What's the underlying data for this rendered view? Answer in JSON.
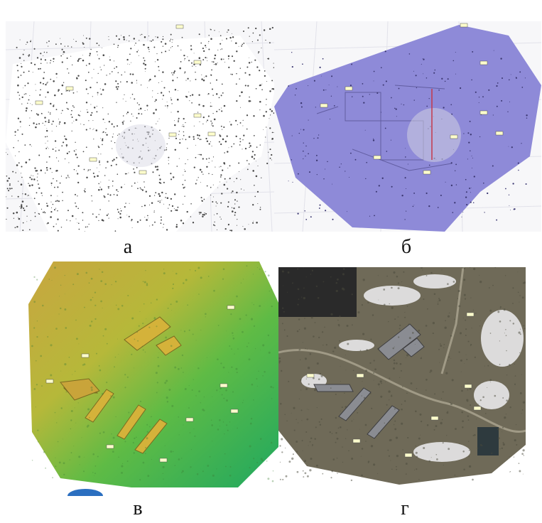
{
  "figure": {
    "captions": [
      "а",
      "б",
      "в",
      "г"
    ],
    "panels": [
      {
        "name": "point-cloud",
        "caption_index": 0
      },
      {
        "name": "mesh-model",
        "caption_index": 1
      },
      {
        "name": "elevation-model",
        "caption_index": 2
      },
      {
        "name": "orthophoto",
        "caption_index": 3
      }
    ],
    "colors": {
      "mesh": "#8e8ad8",
      "dem_high": "#c8a640",
      "dem_low": "#1fa860",
      "ortho_ground": "#6f6a58",
      "snow": "#e8e8ea"
    }
  }
}
